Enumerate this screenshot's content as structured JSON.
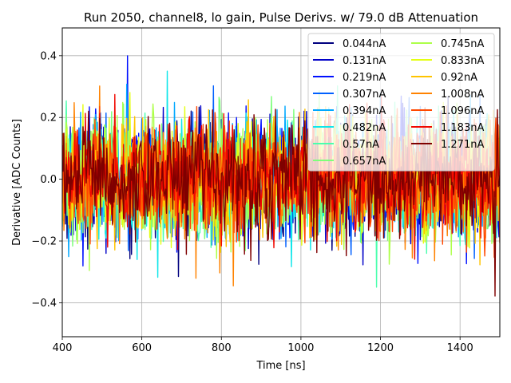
{
  "chart_data": {
    "type": "line",
    "title": "Run 2050, channel8, lo gain, Pulse Derivs. w/ 79.0 dB Attenuation",
    "xlabel": "Time [ns]",
    "ylabel": "Derivative [ADC Counts]",
    "xlim": [
      400,
      1500
    ],
    "ylim": [
      -0.51,
      0.49
    ],
    "xticks": [
      400,
      600,
      800,
      1000,
      1200,
      1400
    ],
    "xtick_labels": [
      "400",
      "600",
      "800",
      "1000",
      "1200",
      "1400"
    ],
    "yticks": [
      -0.4,
      -0.2,
      0.0,
      0.2,
      0.4
    ],
    "ytick_labels": [
      "−0.4",
      "−0.2",
      "0.0",
      "0.2",
      "0.4"
    ],
    "grid": true,
    "legend": {
      "placement": "top-right",
      "columns": 2
    },
    "x_start": 400,
    "x_end": 1500,
    "x_step": 2,
    "series": [
      {
        "name": "0.044nA",
        "color": "#00007f",
        "noise_sd": 0.09
      },
      {
        "name": "0.131nA",
        "color": "#0000c8",
        "noise_sd": 0.09
      },
      {
        "name": "0.219nA",
        "color": "#0010ff",
        "noise_sd": 0.09
      },
      {
        "name": "0.307nA",
        "color": "#0060ff",
        "noise_sd": 0.09
      },
      {
        "name": "0.394nA",
        "color": "#00a8ff",
        "noise_sd": 0.09
      },
      {
        "name": "0.482nA",
        "color": "#0ee6ea",
        "noise_sd": 0.09
      },
      {
        "name": "0.57nA",
        "color": "#49ffad",
        "noise_sd": 0.09
      },
      {
        "name": "0.657nA",
        "color": "#7dff7a",
        "noise_sd": 0.09
      },
      {
        "name": "0.745nA",
        "color": "#adff49",
        "noise_sd": 0.09
      },
      {
        "name": "0.833nA",
        "color": "#e4ff13",
        "noise_sd": 0.09
      },
      {
        "name": "0.92nA",
        "color": "#ffc400",
        "noise_sd": 0.09
      },
      {
        "name": "1.008nA",
        "color": "#ff8200",
        "noise_sd": 0.09
      },
      {
        "name": "1.096nA",
        "color": "#ff4800",
        "noise_sd": 0.09
      },
      {
        "name": "1.183nA",
        "color": "#f10800",
        "noise_sd": 0.09
      },
      {
        "name": "1.271nA",
        "color": "#7f0000",
        "noise_sd": 0.09
      }
    ]
  }
}
